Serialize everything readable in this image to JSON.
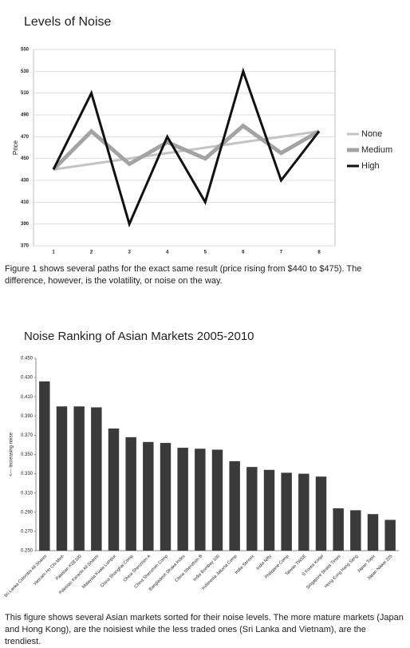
{
  "chart_data": [
    {
      "type": "line",
      "title": "Levels of Noise",
      "y_label": "Price",
      "categories": [
        "1",
        "2",
        "3",
        "4",
        "5",
        "6",
        "7",
        "8"
      ],
      "series": [
        {
          "name": "None",
          "color": "#c4c4c4",
          "values": [
            440,
            445,
            450,
            455,
            460,
            465,
            470,
            475
          ]
        },
        {
          "name": "Medium",
          "color": "#a3a3a3",
          "values": [
            440,
            475,
            445,
            465,
            450,
            480,
            455,
            475
          ]
        },
        {
          "name": "High",
          "color": "#111111",
          "values": [
            440,
            510,
            390,
            470,
            410,
            530,
            430,
            475
          ]
        }
      ],
      "ylim": [
        370,
        550
      ],
      "yticks": [
        370,
        390,
        410,
        430,
        450,
        470,
        490,
        510,
        530,
        550
      ],
      "grid": true,
      "legend": "right"
    },
    {
      "type": "bar",
      "title": "Noise Ranking of Asian Markets 2005-2010",
      "y_label": "<--- Increasing noise",
      "categories": [
        "Sri Lanka Colombo All Shares",
        "Vietnam Ho Chi Minh",
        "Pakistan KSE100",
        "Pakistan Karachi All Shares",
        "Malaysia Kuala Lumpur",
        "China Shanghai Comp",
        "China Shenzhen A",
        "China Shenzhen Comp",
        "Bangladesh Dhaka Index",
        "China Shenzhen B",
        "India Bombay 100",
        "Indonesia Jakarta Comp",
        "India Sensex",
        "India Nifty",
        "Philippine Comp",
        "Taiwan TWSE",
        "S Korea Kospi",
        "Singapore Straits Times",
        "Hong Kong Hang Seng",
        "Japan Topix",
        "Japan Nikkei 225"
      ],
      "values": [
        0.426,
        0.4,
        0.4,
        0.399,
        0.377,
        0.368,
        0.363,
        0.362,
        0.357,
        0.356,
        0.355,
        0.343,
        0.337,
        0.334,
        0.331,
        0.33,
        0.327,
        0.294,
        0.292,
        0.288,
        0.282
      ],
      "color": "#3a3a3a",
      "ylim": [
        0.25,
        0.45
      ],
      "yticks": [
        {
          "value": 0.25,
          "label": "0.250"
        },
        {
          "value": 0.27,
          "label": "0.270"
        },
        {
          "value": 0.29,
          "label": "0.290"
        },
        {
          "value": 0.31,
          "label": "0.310"
        },
        {
          "value": 0.33,
          "label": "0.330"
        },
        {
          "value": 0.35,
          "label": "0.350"
        },
        {
          "value": 0.37,
          "label": "0.370"
        },
        {
          "value": 0.39,
          "label": "0.390"
        },
        {
          "value": 0.41,
          "label": "0.410"
        },
        {
          "value": 0.43,
          "label": "0.430"
        },
        {
          "value": 0.45,
          "label": "0.450"
        }
      ],
      "grid": false
    }
  ],
  "captions": [
    "Figure 1 shows several paths for the exact same result (price rising from $440 to $475). The difference, however, is the volatility, or noise on the way.",
    "This figure shows several Asian markets sorted for their noise levels. The more mature markets (Japan and Hong Kong), are the noisiest while the less traded ones (Sri Lanka and Vietnam), are the trendiest."
  ]
}
